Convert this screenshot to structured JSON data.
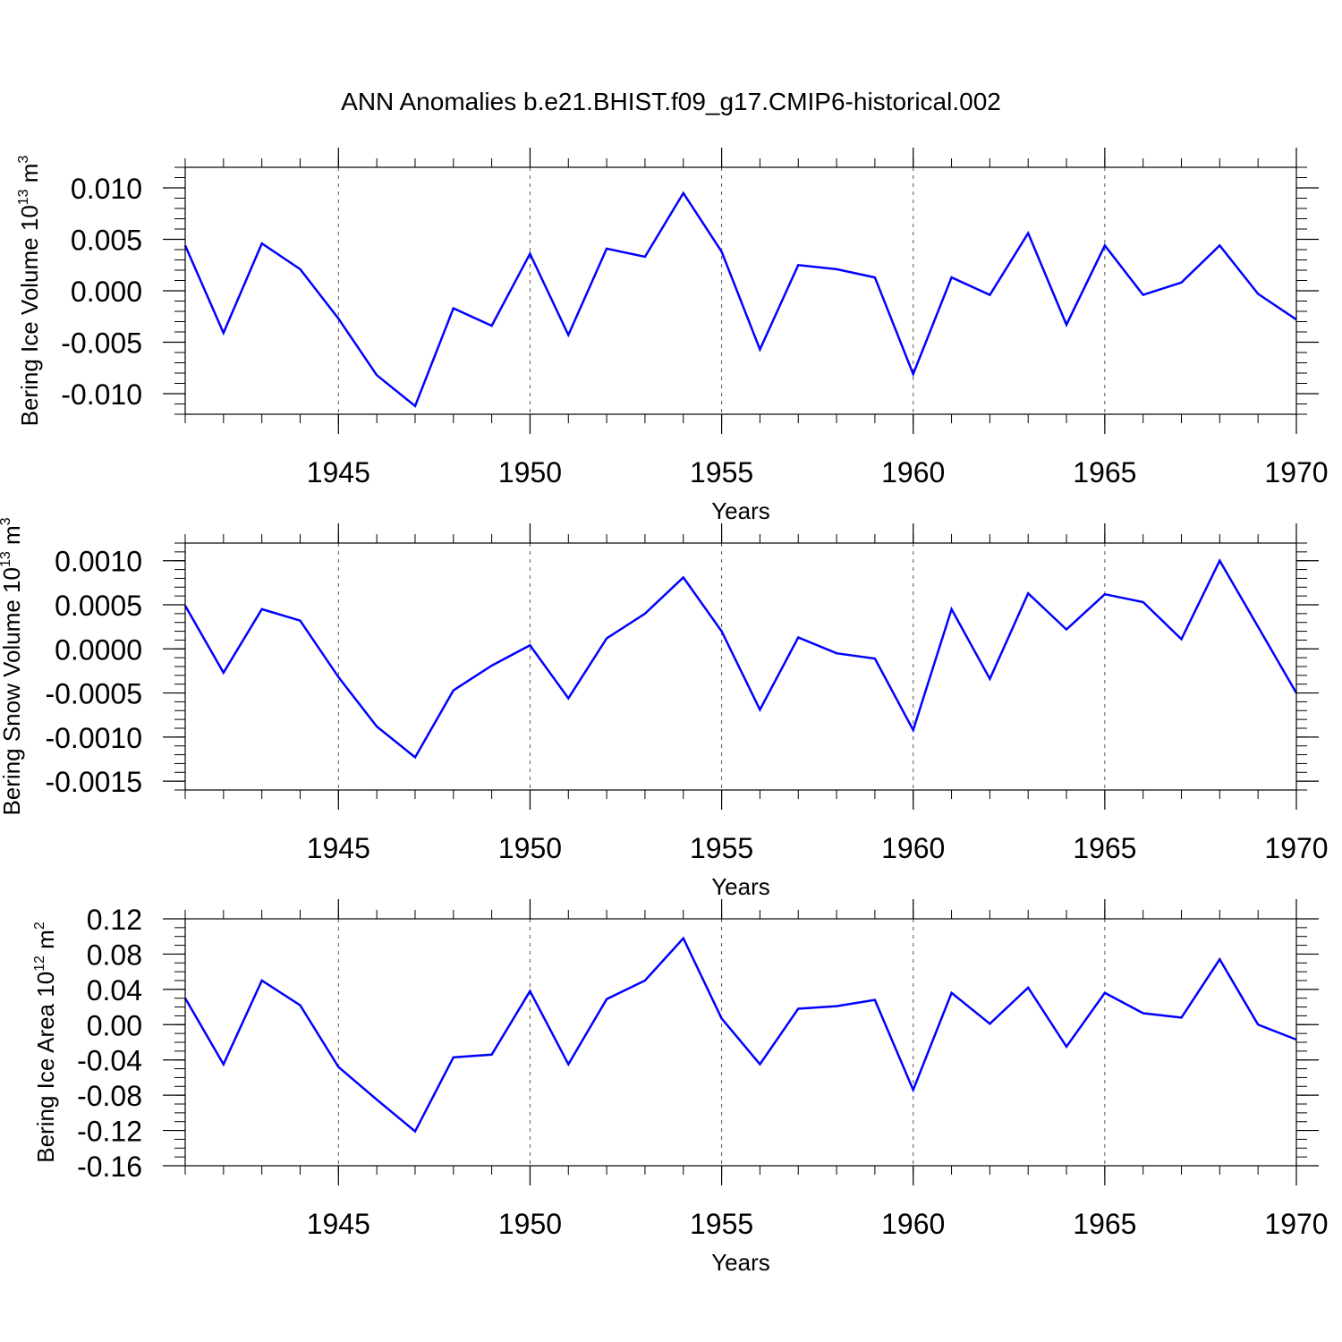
{
  "title": "ANN Anomalies b.e21.BHIST.f09_g17.CMIP6-historical.002",
  "colors": {
    "line": "#0000ff",
    "axis": "#000000",
    "grid": "#555555"
  },
  "chart_data": [
    {
      "type": "line",
      "ylabel": {
        "text": "Bering Ice Volume 10",
        "exp": "13",
        "unit": " m",
        "unit_exp": "3"
      },
      "xlabel": "Years",
      "xlim": [
        1941,
        1970
      ],
      "ylim": [
        -0.012,
        0.012
      ],
      "xticks": [
        "1945",
        "1950",
        "1955",
        "1960",
        "1965",
        "1970"
      ],
      "yticks": [
        "0.010",
        "0.005",
        "0.000",
        "-0.005",
        "-0.010"
      ],
      "ytick_values": [
        0.01,
        0.005,
        0.0,
        -0.005,
        -0.01
      ],
      "ytick_minor_step": 0.001,
      "grid": "dashed vertical at major x ticks",
      "x": [
        1941,
        1942,
        1943,
        1944,
        1945,
        1946,
        1947,
        1948,
        1949,
        1950,
        1951,
        1952,
        1953,
        1954,
        1955,
        1956,
        1957,
        1958,
        1959,
        1960,
        1961,
        1962,
        1963,
        1964,
        1965,
        1966,
        1967,
        1968,
        1969,
        1970
      ],
      "values": [
        0.0044,
        -0.0041,
        0.0046,
        0.0021,
        -0.0027,
        -0.0082,
        -0.0112,
        -0.0017,
        -0.0034,
        0.0036,
        -0.0043,
        0.0041,
        0.0033,
        0.0095,
        0.0038,
        -0.0057,
        0.0025,
        0.0021,
        0.0013,
        -0.0081,
        0.0013,
        -0.0004,
        0.0056,
        -0.0033,
        0.0044,
        -0.0004,
        0.0008,
        0.0044,
        -0.0003,
        -0.0028
      ]
    },
    {
      "type": "line",
      "ylabel": {
        "text": "Bering Snow Volume 10",
        "exp": "13",
        "unit": " m",
        "unit_exp": "3"
      },
      "xlabel": "Years",
      "xlim": [
        1941,
        1970
      ],
      "ylim": [
        -0.0016,
        0.0012
      ],
      "xticks": [
        "1945",
        "1950",
        "1955",
        "1960",
        "1965",
        "1970"
      ],
      "yticks": [
        "0.0010",
        "0.0005",
        "0.0000",
        "-0.0005",
        "-0.0010",
        "-0.0015"
      ],
      "ytick_values": [
        0.001,
        0.0005,
        0.0,
        -0.0005,
        -0.001,
        -0.0015
      ],
      "ytick_minor_step": 0.0001,
      "grid": "dashed vertical at major x ticks",
      "x": [
        1941,
        1942,
        1943,
        1944,
        1945,
        1946,
        1947,
        1948,
        1949,
        1950,
        1951,
        1952,
        1953,
        1954,
        1955,
        1956,
        1957,
        1958,
        1959,
        1960,
        1961,
        1962,
        1963,
        1964,
        1965,
        1966,
        1967,
        1968,
        1969,
        1970
      ],
      "values": [
        0.00049,
        -0.00027,
        0.00045,
        0.00032,
        -0.00032,
        -0.00088,
        -0.00123,
        -0.00047,
        -0.00019,
        4e-05,
        -0.00056,
        0.00012,
        0.0004,
        0.00081,
        0.0002,
        -0.00069,
        0.00013,
        -5e-05,
        -0.00011,
        -0.00092,
        0.00045,
        -0.00034,
        0.00063,
        0.00022,
        0.00062,
        0.00053,
        0.00011,
        0.001,
        0.00025,
        -0.0005
      ]
    },
    {
      "type": "line",
      "ylabel": {
        "text": "Bering Ice Area 10",
        "exp": "12",
        "unit": " m",
        "unit_exp": "2"
      },
      "xlabel": "Years",
      "xlim": [
        1941,
        1970
      ],
      "ylim": [
        -0.16,
        0.12
      ],
      "xticks": [
        "1945",
        "1950",
        "1955",
        "1960",
        "1965",
        "1970"
      ],
      "yticks": [
        "0.12",
        "0.08",
        "0.04",
        "0.00",
        "-0.04",
        "-0.08",
        "-0.12",
        "-0.16"
      ],
      "ytick_values": [
        0.12,
        0.08,
        0.04,
        0.0,
        -0.04,
        -0.08,
        -0.12,
        -0.16
      ],
      "ytick_minor_step": 0.01,
      "grid": "dashed vertical at major x ticks",
      "x": [
        1941,
        1942,
        1943,
        1944,
        1945,
        1946,
        1947,
        1948,
        1949,
        1950,
        1951,
        1952,
        1953,
        1954,
        1955,
        1956,
        1957,
        1958,
        1959,
        1960,
        1961,
        1962,
        1963,
        1964,
        1965,
        1966,
        1967,
        1968,
        1969,
        1970
      ],
      "values": [
        0.03,
        -0.045,
        0.05,
        0.022,
        -0.048,
        -0.085,
        -0.121,
        -0.037,
        -0.034,
        0.038,
        -0.045,
        0.029,
        0.05,
        0.098,
        0.007,
        -0.045,
        0.018,
        0.021,
        0.028,
        -0.074,
        0.036,
        0.001,
        0.042,
        -0.025,
        0.036,
        0.013,
        0.008,
        0.074,
        0.0,
        -0.017
      ]
    }
  ]
}
